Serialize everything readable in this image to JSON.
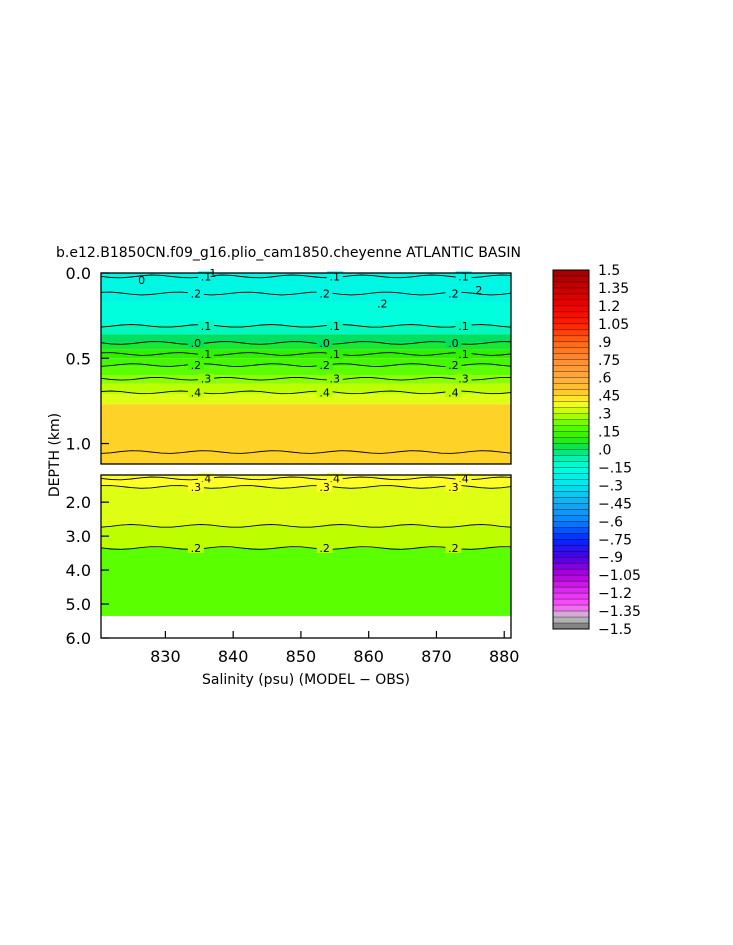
{
  "chart_data": {
    "type": "heatmap",
    "title": "b.e12.B1850CN.f09_g16.plio_cam1850.cheyenne ATLANTIC BASIN",
    "xlabel": "Salinity (psu) (MODEL − OBS)",
    "ylabel": "DEPTH (km)",
    "xlim": [
      820.5,
      881
    ],
    "x_ticks": [
      "830",
      "840",
      "850",
      "860",
      "870",
      "880"
    ],
    "top_panel": {
      "ylim": [
        0,
        1.12
      ],
      "y_ticks": [
        "0.0",
        "0.5",
        "1.0"
      ],
      "bands": [
        {
          "from": 0.0,
          "to": 0.17,
          "value": -0.2
        },
        {
          "from": 0.17,
          "to": 0.3,
          "value": -0.15
        },
        {
          "from": 0.3,
          "to": 0.36,
          "value": -0.1
        },
        {
          "from": 0.36,
          "to": 0.41,
          "value": 0.0
        },
        {
          "from": 0.41,
          "to": 0.45,
          "value": 0.05
        },
        {
          "from": 0.45,
          "to": 0.5,
          "value": 0.1
        },
        {
          "from": 0.5,
          "to": 0.55,
          "value": 0.15
        },
        {
          "from": 0.55,
          "to": 0.6,
          "value": 0.2
        },
        {
          "from": 0.6,
          "to": 0.65,
          "value": 0.25
        },
        {
          "from": 0.65,
          "to": 0.71,
          "value": 0.3
        },
        {
          "from": 0.71,
          "to": 0.77,
          "value": 0.35
        },
        {
          "from": 0.77,
          "to": 1.12,
          "value": 0.45
        }
      ],
      "contours": [
        {
          "depth": 0.02,
          "label": ".1"
        },
        {
          "depth": 0.12,
          "label": ".2"
        },
        {
          "depth": 0.31,
          "label": ".1"
        },
        {
          "depth": 0.41,
          "label": ".0"
        },
        {
          "depth": 0.475,
          "label": ".1"
        },
        {
          "depth": 0.54,
          "label": ".2"
        },
        {
          "depth": 0.62,
          "label": ".3"
        },
        {
          "depth": 0.7,
          "label": ".4"
        },
        {
          "depth": 1.05,
          "label": ""
        }
      ],
      "extra_labels": [
        {
          "x": 826.5,
          "depth": 0.04,
          "label": "0"
        },
        {
          "x": 837,
          "depth": 0.0,
          "label": "1"
        },
        {
          "x": 862,
          "depth": 0.18,
          "label": ".2"
        },
        {
          "x": 876,
          "depth": 0.1,
          "label": ".2"
        }
      ]
    },
    "bottom_panel": {
      "ylim": [
        1.2,
        6.0
      ],
      "y_ticks": [
        "2.0",
        "3.0",
        "4.0",
        "5.0",
        "6.0"
      ],
      "bands": [
        {
          "from": 1.2,
          "to": 1.55,
          "value": 0.4
        },
        {
          "from": 1.55,
          "to": 2.7,
          "value": 0.35
        },
        {
          "from": 2.7,
          "to": 3.35,
          "value": 0.3
        },
        {
          "from": 3.35,
          "to": 5.35,
          "value": 0.2
        }
      ],
      "contours": [
        {
          "depth": 1.3,
          "label": ".4"
        },
        {
          "depth": 1.55,
          "label": ".3"
        },
        {
          "depth": 2.7,
          "label": ""
        },
        {
          "depth": 3.35,
          "label": ".2"
        }
      ],
      "no_data_below": 5.35
    },
    "colorbar": {
      "range": [
        -1.5,
        1.5
      ],
      "step": 0.05,
      "labels": [
        "1.5",
        "1.35",
        "1.2",
        "1.05",
        ".9",
        ".75",
        ".6",
        ".45",
        ".3",
        ".15",
        ".0",
        "−.15",
        "−.3",
        "−.45",
        "−.6",
        "−.75",
        "−.9",
        "−1.05",
        "−1.2",
        "−1.35",
        "−1.5"
      ],
      "stops": [
        {
          "v": -1.5,
          "c": "#6e6e6e"
        },
        {
          "v": -1.4,
          "c": "#c8c8c8"
        },
        {
          "v": -1.3,
          "c": "#ff50ff"
        },
        {
          "v": -1.05,
          "c": "#b400dc"
        },
        {
          "v": -0.9,
          "c": "#4b00e6"
        },
        {
          "v": -0.75,
          "c": "#0028ff"
        },
        {
          "v": -0.6,
          "c": "#0a82ff"
        },
        {
          "v": -0.45,
          "c": "#14aaf0"
        },
        {
          "v": -0.3,
          "c": "#00e6f0"
        },
        {
          "v": -0.15,
          "c": "#00ffdc"
        },
        {
          "v": -0.05,
          "c": "#00f0a0"
        },
        {
          "v": 0.0,
          "c": "#00e060"
        },
        {
          "v": 0.1,
          "c": "#30f000"
        },
        {
          "v": 0.2,
          "c": "#5aff00"
        },
        {
          "v": 0.3,
          "c": "#beff00"
        },
        {
          "v": 0.4,
          "c": "#ffff28"
        },
        {
          "v": 0.45,
          "c": "#ffd228"
        },
        {
          "v": 0.6,
          "c": "#ffaa3c"
        },
        {
          "v": 0.75,
          "c": "#ff8c32"
        },
        {
          "v": 0.9,
          "c": "#ff6414"
        },
        {
          "v": 1.05,
          "c": "#ff1e00"
        },
        {
          "v": 1.2,
          "c": "#f00000"
        },
        {
          "v": 1.35,
          "c": "#c80000"
        },
        {
          "v": 1.5,
          "c": "#a00000"
        }
      ]
    }
  }
}
